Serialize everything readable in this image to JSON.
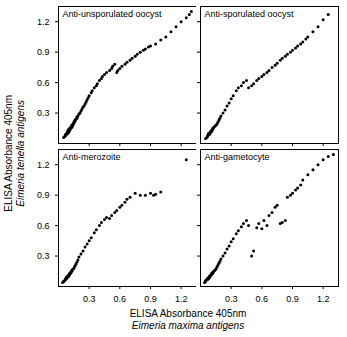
{
  "chart_data": [
    {
      "type": "scatter",
      "title": "Anti-unsporulated oocyst",
      "color": "#000000",
      "xlim": [
        0,
        1.35
      ],
      "ylim": [
        0,
        1.35
      ],
      "xticks": [
        0.3,
        0.6,
        0.9,
        1.2
      ],
      "yticks": [
        0.3,
        0.6,
        0.9,
        1.2
      ],
      "tick_labels": "y",
      "x": [
        0.05,
        0.06,
        0.07,
        0.07,
        0.08,
        0.08,
        0.09,
        0.09,
        0.09,
        0.1,
        0.1,
        0.1,
        0.1,
        0.11,
        0.11,
        0.11,
        0.12,
        0.12,
        0.13,
        0.13,
        0.13,
        0.14,
        0.14,
        0.15,
        0.15,
        0.16,
        0.16,
        0.17,
        0.18,
        0.18,
        0.19,
        0.2,
        0.21,
        0.22,
        0.23,
        0.24,
        0.25,
        0.26,
        0.27,
        0.28,
        0.29,
        0.3,
        0.32,
        0.33,
        0.35,
        0.37,
        0.38,
        0.4,
        0.42,
        0.43,
        0.45,
        0.47,
        0.5,
        0.52,
        0.53,
        0.55,
        0.57,
        0.58,
        0.6,
        0.62,
        0.65,
        0.67,
        0.7,
        0.72,
        0.75,
        0.77,
        0.8,
        0.83,
        0.85,
        0.88,
        0.9,
        0.95,
        1.0,
        1.05,
        1.1,
        1.15,
        1.2,
        1.25,
        1.28,
        1.3
      ],
      "values": [
        0.06,
        0.07,
        0.08,
        0.09,
        0.09,
        0.1,
        0.1,
        0.11,
        0.12,
        0.11,
        0.12,
        0.13,
        0.14,
        0.13,
        0.14,
        0.15,
        0.15,
        0.16,
        0.16,
        0.17,
        0.18,
        0.18,
        0.19,
        0.2,
        0.21,
        0.22,
        0.23,
        0.24,
        0.25,
        0.26,
        0.27,
        0.29,
        0.3,
        0.32,
        0.34,
        0.36,
        0.37,
        0.39,
        0.41,
        0.43,
        0.45,
        0.47,
        0.5,
        0.52,
        0.55,
        0.57,
        0.59,
        0.62,
        0.64,
        0.66,
        0.68,
        0.7,
        0.72,
        0.74,
        0.76,
        0.78,
        0.7,
        0.72,
        0.74,
        0.76,
        0.78,
        0.8,
        0.82,
        0.84,
        0.86,
        0.88,
        0.9,
        0.92,
        0.93,
        0.95,
        0.96,
        0.98,
        1.02,
        1.05,
        1.1,
        1.15,
        1.2,
        1.24,
        1.27,
        1.3
      ]
    },
    {
      "type": "scatter",
      "title": "Anti-sporulated oocyst",
      "color": "#000000",
      "xlim": [
        0,
        1.35
      ],
      "ylim": [
        0,
        1.35
      ],
      "xticks": [
        0.3,
        0.6,
        0.9,
        1.2
      ],
      "yticks": [
        0.3,
        0.6,
        0.9,
        1.2
      ],
      "tick_labels": false,
      "x": [
        0.05,
        0.06,
        0.07,
        0.07,
        0.08,
        0.08,
        0.09,
        0.09,
        0.1,
        0.1,
        0.11,
        0.11,
        0.12,
        0.12,
        0.13,
        0.14,
        0.15,
        0.16,
        0.17,
        0.18,
        0.19,
        0.2,
        0.22,
        0.24,
        0.26,
        0.28,
        0.3,
        0.32,
        0.35,
        0.37,
        0.4,
        0.42,
        0.45,
        0.47,
        0.5,
        0.52,
        0.55,
        0.57,
        0.6,
        0.62,
        0.65,
        0.67,
        0.7,
        0.73,
        0.75,
        0.78,
        0.8,
        0.83,
        0.85,
        0.88,
        0.9,
        0.93,
        0.95,
        0.98,
        1.0,
        1.03,
        1.05,
        1.1,
        1.15,
        1.2,
        1.25
      ],
      "values": [
        0.05,
        0.06,
        0.07,
        0.08,
        0.09,
        0.1,
        0.09,
        0.1,
        0.11,
        0.12,
        0.12,
        0.13,
        0.14,
        0.15,
        0.16,
        0.17,
        0.18,
        0.19,
        0.21,
        0.23,
        0.25,
        0.27,
        0.3,
        0.33,
        0.37,
        0.4,
        0.44,
        0.47,
        0.52,
        0.55,
        0.57,
        0.6,
        0.62,
        0.55,
        0.57,
        0.59,
        0.62,
        0.64,
        0.66,
        0.68,
        0.7,
        0.72,
        0.75,
        0.77,
        0.79,
        0.82,
        0.84,
        0.86,
        0.88,
        0.9,
        0.92,
        0.94,
        0.96,
        0.98,
        1.0,
        1.03,
        1.05,
        1.1,
        1.15,
        1.22,
        1.27
      ]
    },
    {
      "type": "scatter",
      "title": "Anti-merozoite",
      "color": "#000000",
      "xlim": [
        0,
        1.35
      ],
      "ylim": [
        0,
        1.35
      ],
      "xticks": [
        0.3,
        0.6,
        0.9,
        1.2
      ],
      "yticks": [
        0.3,
        0.6,
        0.9,
        1.2
      ],
      "x": [
        0.04,
        0.05,
        0.05,
        0.06,
        0.07,
        0.07,
        0.08,
        0.08,
        0.08,
        0.09,
        0.09,
        0.09,
        0.1,
        0.1,
        0.1,
        0.11,
        0.11,
        0.12,
        0.12,
        0.13,
        0.13,
        0.14,
        0.15,
        0.16,
        0.17,
        0.18,
        0.19,
        0.2,
        0.22,
        0.24,
        0.26,
        0.28,
        0.3,
        0.32,
        0.35,
        0.37,
        0.4,
        0.42,
        0.45,
        0.47,
        0.5,
        0.52,
        0.55,
        0.57,
        0.6,
        0.62,
        0.65,
        0.67,
        0.7,
        0.75,
        0.8,
        0.85,
        0.9,
        0.93,
        0.95,
        1.0,
        1.25
      ],
      "values": [
        0.04,
        0.05,
        0.05,
        0.06,
        0.07,
        0.08,
        0.08,
        0.09,
        0.09,
        0.09,
        0.1,
        0.1,
        0.1,
        0.11,
        0.11,
        0.12,
        0.13,
        0.13,
        0.14,
        0.15,
        0.16,
        0.17,
        0.18,
        0.2,
        0.22,
        0.24,
        0.26,
        0.29,
        0.32,
        0.35,
        0.39,
        0.42,
        0.45,
        0.48,
        0.53,
        0.56,
        0.6,
        0.63,
        0.66,
        0.68,
        0.67,
        0.7,
        0.73,
        0.75,
        0.78,
        0.8,
        0.83,
        0.86,
        0.88,
        0.92,
        0.9,
        0.9,
        0.92,
        0.9,
        0.91,
        0.93,
        1.25
      ]
    },
    {
      "type": "scatter",
      "title": "Anti-gametocyte",
      "color": "#000000",
      "xlim": [
        0,
        1.35
      ],
      "ylim": [
        0,
        1.35
      ],
      "xticks": [
        0.3,
        0.6,
        0.9,
        1.2
      ],
      "yticks": [
        0.3,
        0.6,
        0.9,
        1.2
      ],
      "tick_labels": "x",
      "x": [
        0.04,
        0.05,
        0.05,
        0.06,
        0.07,
        0.07,
        0.08,
        0.08,
        0.09,
        0.09,
        0.09,
        0.1,
        0.1,
        0.11,
        0.11,
        0.12,
        0.12,
        0.13,
        0.14,
        0.15,
        0.16,
        0.17,
        0.18,
        0.19,
        0.2,
        0.22,
        0.24,
        0.26,
        0.28,
        0.3,
        0.32,
        0.35,
        0.37,
        0.4,
        0.42,
        0.45,
        0.47,
        0.5,
        0.52,
        0.55,
        0.57,
        0.6,
        0.62,
        0.65,
        0.67,
        0.7,
        0.73,
        0.75,
        0.78,
        0.8,
        0.83,
        0.85,
        0.88,
        0.9,
        0.93,
        0.95,
        0.98,
        1.0,
        1.05,
        1.1,
        1.15,
        1.2,
        1.25,
        1.3
      ],
      "values": [
        0.04,
        0.05,
        0.06,
        0.07,
        0.07,
        0.08,
        0.08,
        0.09,
        0.09,
        0.1,
        0.1,
        0.11,
        0.11,
        0.12,
        0.13,
        0.13,
        0.14,
        0.15,
        0.16,
        0.17,
        0.19,
        0.21,
        0.23,
        0.25,
        0.27,
        0.3,
        0.33,
        0.37,
        0.4,
        0.44,
        0.47,
        0.52,
        0.55,
        0.59,
        0.62,
        0.65,
        0.6,
        0.3,
        0.35,
        0.58,
        0.62,
        0.57,
        0.65,
        0.6,
        0.7,
        0.73,
        0.78,
        0.8,
        0.62,
        0.63,
        0.65,
        0.88,
        0.9,
        0.92,
        0.95,
        0.97,
        1.0,
        1.05,
        1.1,
        1.15,
        1.2,
        1.25,
        1.28,
        1.3
      ]
    }
  ],
  "xlabel": [
    "ELISA Absorbance 405nm",
    "Eimeria maxima antigens"
  ],
  "ylabel": [
    "ELISA Absorbance 405nm",
    "Eimeria tenella antigens"
  ]
}
